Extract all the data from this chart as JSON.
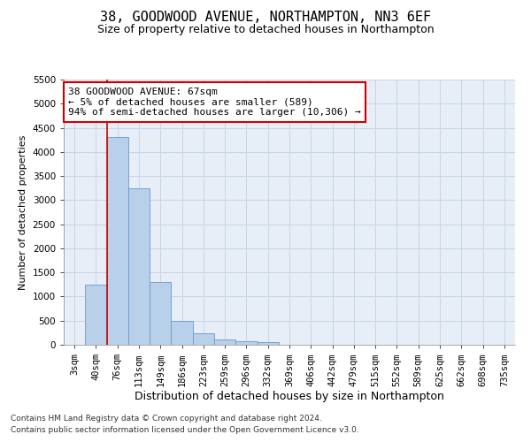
{
  "title": "38, GOODWOOD AVENUE, NORTHAMPTON, NN3 6EF",
  "subtitle": "Size of property relative to detached houses in Northampton",
  "xlabel": "Distribution of detached houses by size in Northampton",
  "ylabel": "Number of detached properties",
  "footer_line1": "Contains HM Land Registry data © Crown copyright and database right 2024.",
  "footer_line2": "Contains public sector information licensed under the Open Government Licence v3.0.",
  "categories": [
    "3sqm",
    "40sqm",
    "76sqm",
    "113sqm",
    "149sqm",
    "186sqm",
    "223sqm",
    "259sqm",
    "296sqm",
    "332sqm",
    "369sqm",
    "406sqm",
    "442sqm",
    "479sqm",
    "515sqm",
    "552sqm",
    "589sqm",
    "625sqm",
    "662sqm",
    "698sqm",
    "735sqm"
  ],
  "bar_values": [
    0,
    1250,
    4300,
    3250,
    1300,
    500,
    230,
    110,
    80,
    50,
    0,
    0,
    0,
    0,
    0,
    0,
    0,
    0,
    0,
    0,
    0
  ],
  "bar_color": "#b8d0ea",
  "bar_edge_color": "#6699cc",
  "ylim": [
    0,
    5500
  ],
  "yticks": [
    0,
    500,
    1000,
    1500,
    2000,
    2500,
    3000,
    3500,
    4000,
    4500,
    5000,
    5500
  ],
  "vline_color": "#cc0000",
  "annotation_box_text": "38 GOODWOOD AVENUE: 67sqm\n← 5% of detached houses are smaller (589)\n94% of semi-detached houses are larger (10,306) →",
  "annotation_box_color": "#cc0000",
  "annotation_box_bg": "#ffffff",
  "grid_color": "#c8d4e8",
  "background_color": "#e8eef8",
  "title_fontsize": 11,
  "subtitle_fontsize": 9,
  "annotation_fontsize": 8,
  "xlabel_fontsize": 9,
  "ylabel_fontsize": 8,
  "tick_fontsize": 7.5,
  "footer_fontsize": 6.5
}
